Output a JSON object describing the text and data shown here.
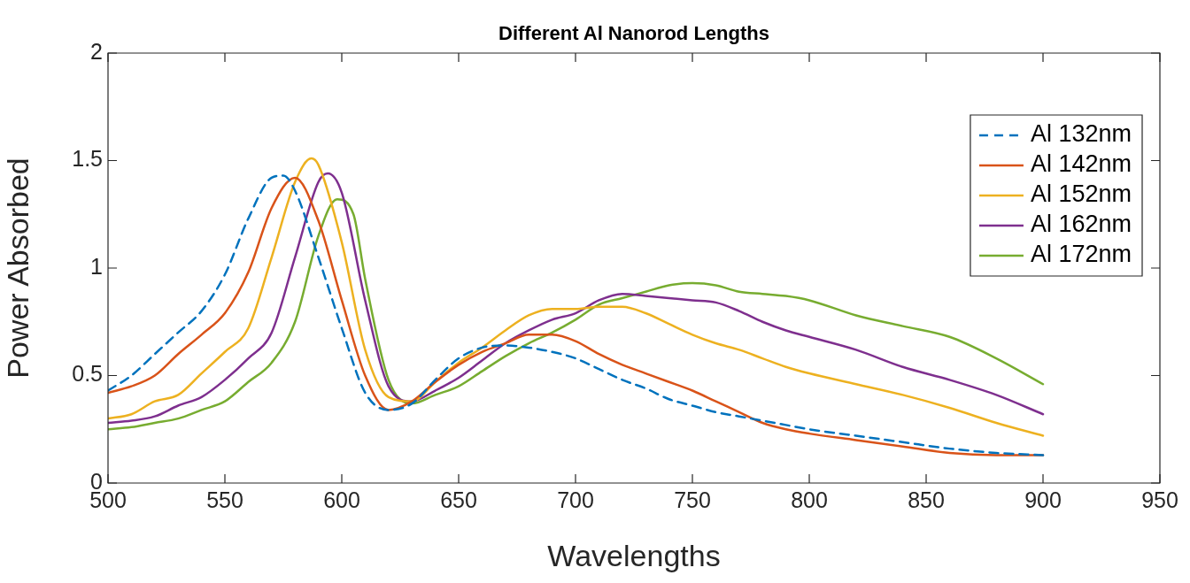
{
  "chart_data": {
    "type": "line",
    "title": "Different Al Nanorod Lengths",
    "xlabel": "Wavelengths",
    "ylabel": "Power Absorbed",
    "xlim": [
      500,
      950
    ],
    "xticks": [
      500,
      550,
      600,
      650,
      700,
      750,
      800,
      850,
      900,
      950
    ],
    "ylim": [
      0,
      2
    ],
    "yticks": [
      0,
      0.5,
      1,
      1.5,
      2
    ],
    "grid": false,
    "legend": "top right",
    "marker": "none",
    "series": [
      {
        "name": "Al 132nm",
        "color": "#0072bd",
        "line_style": "dashed",
        "x": [
          500,
          510,
          520,
          530,
          540,
          550,
          560,
          570,
          575,
          580,
          590,
          600,
          610,
          620,
          630,
          640,
          650,
          660,
          670,
          680,
          690,
          700,
          710,
          720,
          730,
          740,
          750,
          760,
          770,
          780,
          790,
          800,
          820,
          840,
          860,
          880,
          900
        ],
        "values": [
          0.43,
          0.5,
          0.6,
          0.7,
          0.8,
          0.97,
          1.23,
          1.42,
          1.43,
          1.36,
          1.05,
          0.72,
          0.42,
          0.34,
          0.37,
          0.48,
          0.58,
          0.63,
          0.64,
          0.63,
          0.61,
          0.58,
          0.53,
          0.48,
          0.44,
          0.39,
          0.36,
          0.33,
          0.31,
          0.29,
          0.27,
          0.25,
          0.22,
          0.19,
          0.16,
          0.14,
          0.13
        ]
      },
      {
        "name": "Al 142nm",
        "color": "#d95319",
        "line_style": "solid",
        "x": [
          500,
          510,
          520,
          530,
          540,
          550,
          560,
          570,
          580,
          590,
          600,
          610,
          620,
          630,
          640,
          650,
          660,
          670,
          680,
          690,
          700,
          710,
          720,
          730,
          740,
          750,
          760,
          770,
          780,
          790,
          800,
          820,
          840,
          860,
          880,
          900
        ],
        "values": [
          0.42,
          0.45,
          0.5,
          0.6,
          0.69,
          0.79,
          0.98,
          1.28,
          1.42,
          1.22,
          0.85,
          0.5,
          0.34,
          0.38,
          0.47,
          0.55,
          0.61,
          0.65,
          0.69,
          0.69,
          0.66,
          0.6,
          0.55,
          0.51,
          0.47,
          0.43,
          0.38,
          0.33,
          0.28,
          0.25,
          0.23,
          0.2,
          0.17,
          0.14,
          0.13,
          0.13
        ]
      },
      {
        "name": "Al 152nm",
        "color": "#edb120",
        "line_style": "solid",
        "x": [
          500,
          510,
          520,
          530,
          540,
          550,
          560,
          570,
          580,
          587,
          590,
          600,
          610,
          620,
          630,
          640,
          650,
          660,
          670,
          680,
          690,
          700,
          710,
          720,
          730,
          740,
          750,
          760,
          770,
          780,
          790,
          800,
          820,
          840,
          860,
          880,
          900
        ],
        "values": [
          0.3,
          0.32,
          0.38,
          0.41,
          0.51,
          0.61,
          0.72,
          1.05,
          1.4,
          1.51,
          1.48,
          1.12,
          0.62,
          0.4,
          0.38,
          0.47,
          0.56,
          0.63,
          0.71,
          0.78,
          0.81,
          0.81,
          0.82,
          0.82,
          0.79,
          0.74,
          0.69,
          0.65,
          0.62,
          0.58,
          0.54,
          0.51,
          0.46,
          0.41,
          0.35,
          0.28,
          0.22
        ]
      },
      {
        "name": "Al 162nm",
        "color": "#7e2f8e",
        "line_style": "solid",
        "x": [
          500,
          510,
          520,
          530,
          540,
          550,
          560,
          570,
          580,
          590,
          594,
          600,
          610,
          620,
          630,
          640,
          650,
          660,
          670,
          680,
          690,
          700,
          710,
          720,
          730,
          740,
          750,
          760,
          770,
          780,
          790,
          800,
          820,
          840,
          860,
          880,
          900
        ],
        "values": [
          0.28,
          0.29,
          0.31,
          0.36,
          0.4,
          0.48,
          0.58,
          0.7,
          1.05,
          1.4,
          1.44,
          1.35,
          0.85,
          0.45,
          0.38,
          0.43,
          0.49,
          0.57,
          0.65,
          0.71,
          0.76,
          0.79,
          0.85,
          0.88,
          0.87,
          0.86,
          0.85,
          0.84,
          0.8,
          0.75,
          0.71,
          0.68,
          0.62,
          0.54,
          0.48,
          0.41,
          0.32
        ]
      },
      {
        "name": "Al 172nm",
        "color": "#77ac30",
        "line_style": "solid",
        "x": [
          500,
          510,
          520,
          530,
          540,
          550,
          560,
          570,
          580,
          590,
          598,
          605,
          610,
          620,
          630,
          640,
          650,
          660,
          670,
          680,
          690,
          700,
          710,
          720,
          730,
          740,
          750,
          760,
          770,
          780,
          790,
          800,
          820,
          840,
          860,
          880,
          900
        ],
        "values": [
          0.25,
          0.26,
          0.28,
          0.3,
          0.34,
          0.38,
          0.47,
          0.56,
          0.75,
          1.15,
          1.32,
          1.25,
          0.95,
          0.48,
          0.37,
          0.41,
          0.45,
          0.52,
          0.59,
          0.65,
          0.7,
          0.76,
          0.83,
          0.86,
          0.89,
          0.92,
          0.93,
          0.92,
          0.89,
          0.88,
          0.87,
          0.85,
          0.78,
          0.73,
          0.68,
          0.58,
          0.46
        ]
      }
    ]
  }
}
